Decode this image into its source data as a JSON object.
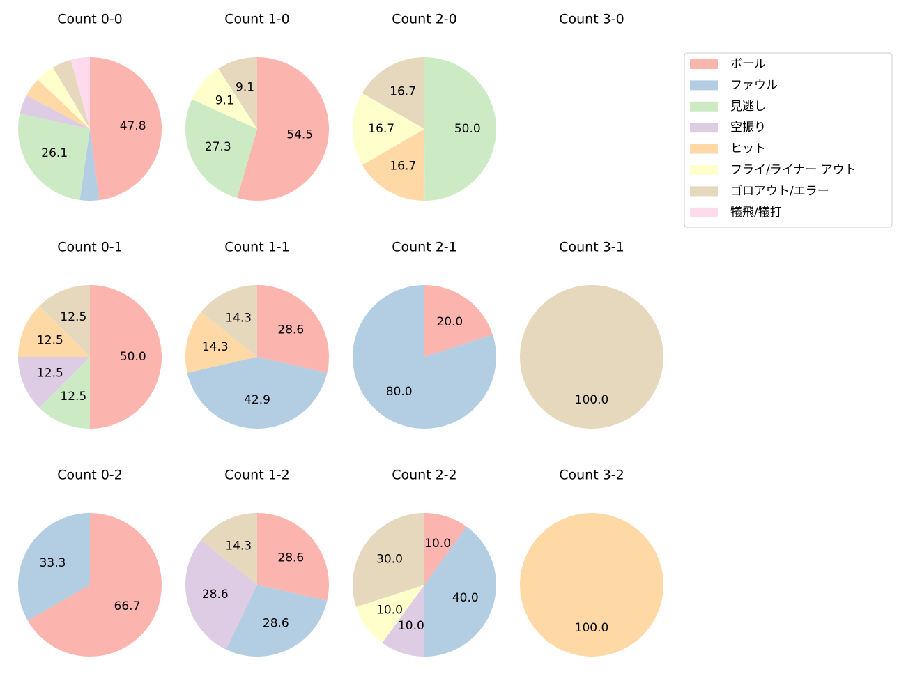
{
  "legend": {
    "names": [
      "ボール",
      "ファウル",
      "見逃し",
      "空振り",
      "ヒット",
      "フライ/ライナー アウト",
      "ゴロアウト/エラー",
      "犠飛/犠打"
    ],
    "colors": [
      "#fbb4ae",
      "#b3cde3",
      "#ccebc5",
      "#decbe4",
      "#fed9a6",
      "#ffffcc",
      "#e5d8bd",
      "#fddaec"
    ]
  },
  "chart_data": [
    {
      "type": "pie",
      "title": "Count 0-0",
      "values": [
        47.8,
        4.3,
        26.1,
        4.3,
        4.3,
        4.3,
        4.3,
        4.3
      ],
      "value_labels": [
        "47.8",
        null,
        "26.1",
        null,
        null,
        null,
        null,
        null
      ]
    },
    {
      "type": "pie",
      "title": "Count 1-0",
      "values": [
        54.5,
        null,
        27.3,
        null,
        null,
        9.1,
        9.1,
        null
      ],
      "value_labels": [
        "54.5",
        null,
        "27.3",
        null,
        null,
        "9.1",
        "9.1",
        null
      ]
    },
    {
      "type": "pie",
      "title": "Count 2-0",
      "values": [
        null,
        null,
        50.0,
        null,
        16.7,
        16.7,
        16.7,
        null
      ],
      "value_labels": [
        null,
        null,
        "50.0",
        null,
        "16.7",
        "16.7",
        "16.7",
        null
      ]
    },
    {
      "type": "pie",
      "title": "Count 3-0",
      "values": [
        null,
        null,
        null,
        null,
        null,
        null,
        null,
        null
      ],
      "value_labels": [
        null,
        null,
        null,
        null,
        null,
        null,
        null,
        null
      ]
    },
    {
      "type": "pie",
      "title": "Count 0-1",
      "values": [
        50.0,
        null,
        12.5,
        12.5,
        12.5,
        null,
        12.5,
        null
      ],
      "value_labels": [
        "50.0",
        null,
        "12.5",
        "12.5",
        "12.5",
        null,
        "12.5",
        null
      ]
    },
    {
      "type": "pie",
      "title": "Count 1-1",
      "values": [
        28.6,
        42.9,
        null,
        null,
        14.3,
        null,
        14.3,
        null
      ],
      "value_labels": [
        "28.6",
        "42.9",
        null,
        null,
        "14.3",
        null,
        "14.3",
        null
      ]
    },
    {
      "type": "pie",
      "title": "Count 2-1",
      "values": [
        20.0,
        80.0,
        null,
        null,
        null,
        null,
        null,
        null
      ],
      "value_labels": [
        "20.0",
        "80.0",
        null,
        null,
        null,
        null,
        null,
        null
      ]
    },
    {
      "type": "pie",
      "title": "Count 3-1",
      "values": [
        null,
        null,
        null,
        null,
        null,
        null,
        100.0,
        null
      ],
      "value_labels": [
        null,
        null,
        null,
        null,
        null,
        null,
        "100.0",
        null
      ]
    },
    {
      "type": "pie",
      "title": "Count 0-2",
      "values": [
        66.7,
        33.3,
        null,
        null,
        null,
        null,
        null,
        null
      ],
      "value_labels": [
        "66.7",
        "33.3",
        null,
        null,
        null,
        null,
        null,
        null
      ]
    },
    {
      "type": "pie",
      "title": "Count 1-2",
      "values": [
        28.6,
        28.6,
        null,
        28.6,
        null,
        null,
        14.3,
        null
      ],
      "value_labels": [
        "28.6",
        "28.6",
        null,
        "28.6",
        null,
        null,
        "14.3",
        null
      ]
    },
    {
      "type": "pie",
      "title": "Count 2-2",
      "values": [
        10.0,
        40.0,
        null,
        10.0,
        null,
        10.0,
        30.0,
        null
      ],
      "value_labels": [
        "10.0",
        "40.0",
        null,
        "10.0",
        null,
        "10.0",
        "30.0",
        null
      ]
    },
    {
      "type": "pie",
      "title": "Count 3-2",
      "values": [
        null,
        null,
        null,
        null,
        100.0,
        null,
        null,
        null
      ],
      "value_labels": [
        null,
        null,
        null,
        null,
        "100.0",
        null,
        null,
        null
      ]
    }
  ]
}
